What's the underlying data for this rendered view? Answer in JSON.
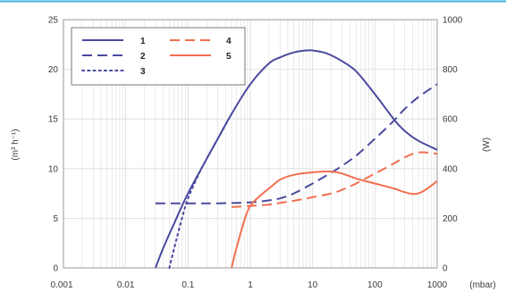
{
  "chart_data": {
    "type": "line",
    "x_scale": "log",
    "xlim": [
      0.001,
      1000
    ],
    "x_ticks": [
      "0.001",
      "0.01",
      "0.1",
      "1",
      "10",
      "100",
      "1000"
    ],
    "x_tick_values": [
      0.001,
      0.01,
      0.1,
      1,
      10,
      100,
      1000
    ],
    "xlabel": "(mbar)",
    "ylim_left": [
      0,
      25
    ],
    "y_ticks_left": [
      "0",
      "5",
      "10",
      "15",
      "20",
      "25"
    ],
    "ylabel_left": "(m³ h⁻¹)",
    "ylim_right": [
      0,
      1000
    ],
    "y_ticks_right": [
      "0",
      "200",
      "400",
      "600",
      "800",
      "1000"
    ],
    "ylabel_right": "(W)",
    "grid": true,
    "legend_position": "top-left",
    "colors": {
      "blue": "#4a4aa0",
      "orange": "#f07050",
      "top_rule": "#3ab0d8",
      "grid": "#dcdcdc"
    },
    "series": [
      {
        "name": "1",
        "axis": "left",
        "style": "solid",
        "color": "#4a4aa0",
        "x": [
          0.03,
          0.04,
          0.06,
          0.1,
          0.2,
          0.3,
          0.5,
          1,
          2,
          3,
          5,
          8,
          10,
          15,
          20,
          30,
          50,
          100,
          200,
          300,
          500,
          1000
        ],
        "y": [
          0,
          2,
          4.5,
          7.5,
          11,
          13,
          15.5,
          18.5,
          20.6,
          21.2,
          21.7,
          21.9,
          21.9,
          21.7,
          21.4,
          20.8,
          19.8,
          17.5,
          15,
          13.8,
          12.8,
          11.9
        ]
      },
      {
        "name": "2",
        "axis": "left",
        "style": "dashed",
        "color": "#4a4aa0",
        "x": [
          0.03,
          0.1,
          0.3,
          1,
          2,
          3,
          5,
          10,
          20,
          30,
          50,
          100,
          200,
          300,
          500,
          1000
        ],
        "y": [
          6.5,
          6.5,
          6.5,
          6.6,
          6.8,
          7,
          7.5,
          8.5,
          9.6,
          10.3,
          11.3,
          13,
          14.8,
          16,
          17.2,
          18.5
        ]
      },
      {
        "name": "3",
        "axis": "left",
        "style": "dotted",
        "color": "#4a4aa0",
        "x": [
          0.05,
          0.06,
          0.08,
          0.1,
          0.15,
          0.2,
          0.3,
          0.5
        ],
        "y": [
          0,
          2,
          5,
          7,
          9.5,
          11,
          13,
          15.5
        ]
      },
      {
        "name": "4",
        "axis": "right",
        "style": "dashed",
        "color": "#f07050",
        "x": [
          0.5,
          1,
          2,
          3,
          5,
          10,
          20,
          30,
          50,
          100,
          200,
          300,
          500,
          1000
        ],
        "y": [
          245,
          250,
          255,
          262,
          270,
          285,
          300,
          315,
          340,
          380,
          420,
          445,
          465,
          460
        ]
      },
      {
        "name": "5",
        "axis": "right",
        "style": "solid",
        "color": "#f07050",
        "x": [
          0.5,
          0.6,
          0.8,
          1,
          1.5,
          2,
          3,
          5,
          10,
          20,
          30,
          50,
          100,
          200,
          300,
          400,
          500,
          700,
          1000
        ],
        "y": [
          0,
          80,
          190,
          250,
          295,
          320,
          355,
          375,
          385,
          388,
          380,
          360,
          340,
          320,
          305,
          298,
          300,
          320,
          350
        ]
      }
    ]
  }
}
